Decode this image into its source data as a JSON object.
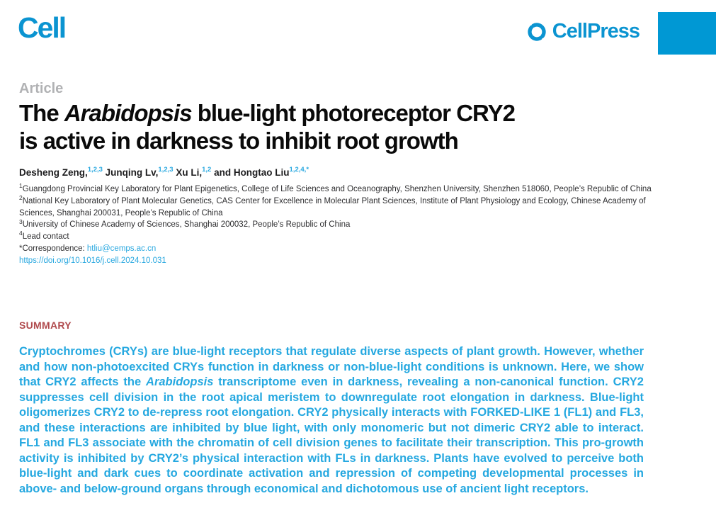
{
  "colors": {
    "brand_cyan": "#0b94d1",
    "accent_rect": "#0098d4",
    "link_blue": "#29a8e0",
    "summary_blue": "#25a8e0",
    "summary_red": "#b04a4d",
    "kicker_gray": "#b1b2b4"
  },
  "masthead": {
    "journal_logo": "Cell",
    "publisher_logo": "CellPress",
    "swirl_icon": "cellpress-swirl-icon"
  },
  "article": {
    "kicker": "Article",
    "title_lines": [
      [
        {
          "text": "The ",
          "italic": false
        },
        {
          "text": "Arabidopsis",
          "italic": true
        },
        {
          "text": " blue-light photoreceptor CRY2",
          "italic": false
        }
      ],
      [
        {
          "text": "is active in darkness to inhibit root growth",
          "italic": false
        }
      ]
    ],
    "authors": [
      {
        "name": "Desheng Zeng,",
        "sup": "1,2,3"
      },
      {
        "name": "Junqing Lv,",
        "sup": "1,2,3"
      },
      {
        "name": "Xu Li,",
        "sup": "1,2"
      },
      {
        "name": "and Hongtao Liu",
        "sup": "1,2,4,*"
      }
    ],
    "affiliations": [
      {
        "sup": "1",
        "text": "Guangdong Provincial Key Laboratory for Plant Epigenetics, College of Life Sciences and Oceanography, Shenzhen University, Shenzhen 518060, People’s Republic of China"
      },
      {
        "sup": "2",
        "text": "National Key Laboratory of Plant Molecular Genetics, CAS Center for Excellence in Molecular Plant Sciences, Institute of Plant Physiology and Ecology, Chinese Academy of Sciences, Shanghai 200031, People’s Republic of China"
      },
      {
        "sup": "3",
        "text": "University of Chinese Academy of Sciences, Shanghai 200032, People’s Republic of China"
      },
      {
        "sup": "4",
        "text": "Lead contact"
      }
    ],
    "correspondence_prefix": "*Correspondence: ",
    "correspondence_email": "htliu@cemps.ac.cn",
    "doi": "https://doi.org/10.1016/j.cell.2024.10.031"
  },
  "summary": {
    "heading": "SUMMARY",
    "segments": [
      {
        "text": "Cryptochromes (CRYs) are blue-light receptors that regulate diverse aspects of plant growth. However, whether and how non-photoexcited CRYs function in darkness or non-blue-light conditions is unknown. Here, we show that CRY2 affects the ",
        "italic": false
      },
      {
        "text": "Arabidopsis",
        "italic": true
      },
      {
        "text": " transcriptome even in darkness, revealing a non-canonical function. CRY2 suppresses cell division in the root apical meristem to downregulate root elongation in darkness. Blue-light oligomerizes CRY2 to de-repress root elongation. CRY2 physically interacts with FORKED-LIKE 1 (FL1) and FL3, and these interactions are inhibited by blue light, with only monomeric but not dimeric CRY2 able to interact. FL1 and FL3 associate with the chromatin of cell division genes to facilitate their transcription. This pro-growth activity is inhibited by CRY2’s physical interaction with FLs in darkness. Plants have evolved to perceive both blue-light and dark cues to coordinate activation and repression of competing developmental processes in above- and below-ground organs through economical and dichotomous use of ancient light receptors.",
        "italic": false
      }
    ]
  }
}
